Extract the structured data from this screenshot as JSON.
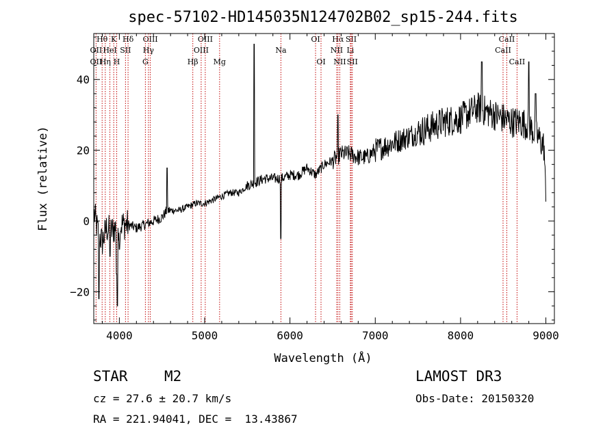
{
  "chart_data": {
    "type": "line",
    "title": "spec-57102-HD145035N124702B02_sp15-244.fits",
    "xlabel": "Wavelength (Å)",
    "ylabel": "Flux (relative)",
    "xlim": [
      3700,
      9100
    ],
    "ylim": [
      -29,
      53
    ],
    "xticks": [
      4000,
      5000,
      6000,
      7000,
      8000,
      9000
    ],
    "xtick_labels": [
      "4000",
      "5000",
      "6000",
      "7000",
      "8000",
      "9000"
    ],
    "yticks": [
      -20,
      0,
      20,
      40
    ],
    "ytick_labels": [
      "−20",
      "0",
      "20",
      "40"
    ],
    "grid": false,
    "lines": [
      {
        "label": "Hθ",
        "x": 3798,
        "row": 1
      },
      {
        "label": "OII",
        "x": 3727,
        "row": 2
      },
      {
        "label": "OII",
        "x": 3727,
        "row": 3
      },
      {
        "label": "K",
        "x": 3934,
        "row": 1
      },
      {
        "label": "HeI",
        "x": 3889,
        "row": 2
      },
      {
        "label": "Hη",
        "x": 3835,
        "row": 3
      },
      {
        "label": "SII",
        "x": 4072,
        "row": 2
      },
      {
        "label": "H",
        "x": 3969,
        "row": 3
      },
      {
        "label": "Hδ",
        "x": 4102,
        "row": 1
      },
      {
        "label": "OIII",
        "x": 4363,
        "row": 1
      },
      {
        "label": "Hγ",
        "x": 4341,
        "row": 2
      },
      {
        "label": "G",
        "x": 4305,
        "row": 3
      },
      {
        "label": "Hβ",
        "x": 4861,
        "row": 3
      },
      {
        "label": "OIII",
        "x": 5007,
        "row": 1
      },
      {
        "label": "OIII",
        "x": 4959,
        "row": 2
      },
      {
        "label": "Mg",
        "x": 5175,
        "row": 3
      },
      {
        "label": "Na",
        "x": 5894,
        "row": 2
      },
      {
        "label": "OI",
        "x": 6300,
        "row": 1
      },
      {
        "label": "OI",
        "x": 6364,
        "row": 3
      },
      {
        "label": "Hα",
        "x": 6563,
        "row": 1
      },
      {
        "label": "NII",
        "x": 6548,
        "row": 2
      },
      {
        "label": "NII",
        "x": 6584,
        "row": 3
      },
      {
        "label": "SII",
        "x": 6717,
        "row": 1
      },
      {
        "label": "Li",
        "x": 6708,
        "row": 2
      },
      {
        "label": "SII",
        "x": 6731,
        "row": 3
      },
      {
        "label": "CaII",
        "x": 8542,
        "row": 1
      },
      {
        "label": "CaII",
        "x": 8498,
        "row": 2
      },
      {
        "label": "CaII",
        "x": 8662,
        "row": 3
      }
    ],
    "continuum": [
      [
        3705,
        2
      ],
      [
        3750,
        -3
      ],
      [
        3800,
        -6
      ],
      [
        3850,
        -2
      ],
      [
        3900,
        -3
      ],
      [
        3950,
        -2
      ],
      [
        4000,
        -1
      ],
      [
        4100,
        -1
      ],
      [
        4200,
        -2
      ],
      [
        4300,
        -1
      ],
      [
        4400,
        0
      ],
      [
        4500,
        1
      ],
      [
        4560,
        3
      ],
      [
        4700,
        3
      ],
      [
        4800,
        4
      ],
      [
        4900,
        5
      ],
      [
        5000,
        5
      ],
      [
        5100,
        6
      ],
      [
        5200,
        7
      ],
      [
        5300,
        8
      ],
      [
        5400,
        8
      ],
      [
        5500,
        10
      ],
      [
        5700,
        12
      ],
      [
        5900,
        12
      ],
      [
        6000,
        13
      ],
      [
        6100,
        13
      ],
      [
        6200,
        15
      ],
      [
        6300,
        13
      ],
      [
        6400,
        16
      ],
      [
        6500,
        17
      ],
      [
        6600,
        19
      ],
      [
        6700,
        19
      ],
      [
        6800,
        18
      ],
      [
        6900,
        18
      ],
      [
        7000,
        20
      ],
      [
        7200,
        22
      ],
      [
        7400,
        24
      ],
      [
        7600,
        26
      ],
      [
        7800,
        28
      ],
      [
        8000,
        29
      ],
      [
        8200,
        32
      ],
      [
        8400,
        30
      ],
      [
        8600,
        28
      ],
      [
        8700,
        28
      ],
      [
        8800,
        27
      ],
      [
        8900,
        24
      ],
      [
        8980,
        21
      ],
      [
        9000,
        5
      ]
    ],
    "features": [
      {
        "x": 3760,
        "y": -22
      },
      {
        "x": 3890,
        "y": -10
      },
      {
        "x": 3968,
        "y": -15
      },
      {
        "x": 3978,
        "y": -24
      },
      {
        "x": 4000,
        "y": -8
      },
      {
        "x": 4560,
        "y": 15
      },
      {
        "x": 5581,
        "y": 50
      },
      {
        "x": 5893,
        "y": -5
      },
      {
        "x": 6563,
        "y": 30
      },
      {
        "x": 8250,
        "y": 45
      },
      {
        "x": 8800,
        "y": 45
      },
      {
        "x": 8880,
        "y": 36
      }
    ]
  },
  "info": {
    "object_class": "STAR",
    "subclass": "M2",
    "survey": "LAMOST DR3",
    "redshift_line": "cz = 27.6 ± 20.7 km/s",
    "obs_date": "Obs-Date: 20150320",
    "coords": "RA = 221.94041, DEC =  13.43867"
  }
}
